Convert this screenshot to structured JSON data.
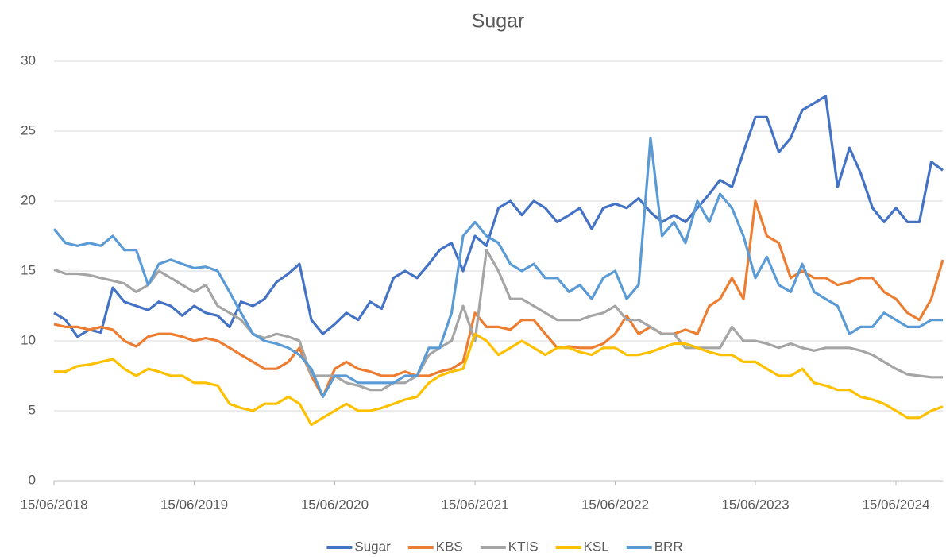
{
  "chart_data": {
    "type": "line",
    "title": "Sugar",
    "x": [
      "15/06/2018",
      "15/07/2018",
      "15/08/2018",
      "15/09/2018",
      "15/10/2018",
      "15/11/2018",
      "15/12/2018",
      "15/01/2019",
      "15/02/2019",
      "15/03/2019",
      "15/04/2019",
      "15/05/2019",
      "15/06/2019",
      "15/07/2019",
      "15/08/2019",
      "15/09/2019",
      "15/10/2019",
      "15/11/2019",
      "15/12/2019",
      "15/01/2020",
      "15/02/2020",
      "15/03/2020",
      "15/04/2020",
      "15/05/2020",
      "15/06/2020",
      "15/07/2020",
      "15/08/2020",
      "15/09/2020",
      "15/10/2020",
      "15/11/2020",
      "15/12/2020",
      "15/01/2021",
      "15/02/2021",
      "15/03/2021",
      "15/04/2021",
      "15/05/2021",
      "15/06/2021",
      "15/07/2021",
      "15/08/2021",
      "15/09/2021",
      "15/10/2021",
      "15/11/2021",
      "15/12/2021",
      "15/01/2022",
      "15/02/2022",
      "15/03/2022",
      "15/04/2022",
      "15/05/2022",
      "15/06/2022",
      "15/07/2022",
      "15/08/2022",
      "15/09/2022",
      "15/10/2022",
      "15/11/2022",
      "15/12/2022",
      "15/01/2023",
      "15/02/2023",
      "15/03/2023",
      "15/04/2023",
      "15/05/2023",
      "15/06/2023",
      "15/07/2023",
      "15/08/2023",
      "15/09/2023",
      "15/10/2023",
      "15/11/2023",
      "15/12/2023",
      "15/01/2024",
      "15/02/2024",
      "15/03/2024",
      "15/04/2024",
      "15/05/2024",
      "15/06/2024",
      "15/07/2024",
      "15/08/2024",
      "15/09/2024",
      "15/10/2024"
    ],
    "series": [
      {
        "name": "Sugar",
        "color": "#4472c4",
        "values": [
          12,
          11.5,
          10.3,
          10.8,
          10.6,
          13.8,
          12.8,
          12.5,
          12.2,
          12.8,
          12.5,
          11.8,
          12.5,
          12.0,
          11.8,
          11.0,
          12.8,
          12.5,
          13.0,
          14.2,
          14.8,
          15.5,
          11.5,
          10.5,
          11.2,
          12.0,
          11.5,
          12.8,
          12.3,
          14.5,
          15.0,
          14.5,
          15.5,
          16.5,
          17.0,
          15.0,
          17.5,
          16.8,
          19.5,
          20.0,
          19.0,
          20.0,
          19.5,
          18.5,
          19.0,
          19.5,
          18.0,
          19.5,
          19.8,
          19.5,
          20.2,
          19.2,
          18.5,
          19.0,
          18.5,
          19.5,
          20.5,
          21.5,
          21.0,
          23.5,
          26.0,
          26.0,
          23.5,
          24.5,
          26.5,
          27.0,
          27.5,
          21.0,
          23.8,
          22.0,
          19.5,
          18.5,
          19.5,
          18.5,
          18.5,
          22.8,
          22.2
        ]
      },
      {
        "name": "KBS",
        "color": "#ed7d31",
        "values": [
          11.2,
          11.0,
          11.0,
          10.8,
          11.0,
          10.8,
          10.0,
          9.6,
          10.3,
          10.5,
          10.5,
          10.3,
          10.0,
          10.2,
          10.0,
          9.5,
          9.0,
          8.5,
          8.0,
          8.0,
          8.5,
          9.5,
          7.5,
          6.0,
          8.0,
          8.5,
          8.0,
          7.8,
          7.5,
          7.5,
          7.8,
          7.5,
          7.5,
          7.8,
          8.0,
          8.5,
          12.0,
          11.0,
          11.0,
          10.8,
          11.5,
          11.5,
          10.5,
          9.5,
          9.6,
          9.5,
          9.5,
          9.8,
          10.5,
          11.8,
          10.5,
          11.0,
          10.5,
          10.5,
          10.8,
          10.5,
          12.5,
          13.0,
          14.5,
          13.0,
          20.0,
          17.5,
          17.0,
          14.5,
          15.0,
          14.5,
          14.5,
          14.0,
          14.2,
          14.5,
          14.5,
          13.5,
          13.0,
          12.0,
          11.5,
          13.0,
          15.8
        ]
      },
      {
        "name": "KTIS",
        "color": "#a5a5a5",
        "values": [
          15.1,
          14.8,
          14.8,
          14.7,
          14.5,
          14.3,
          14.1,
          13.5,
          14.0,
          15.0,
          14.5,
          14.0,
          13.5,
          14.0,
          12.5,
          12.0,
          11.5,
          10.5,
          10.2,
          10.5,
          10.3,
          10.0,
          7.5,
          7.5,
          7.5,
          7.0,
          6.8,
          6.5,
          6.5,
          7.0,
          7.0,
          7.5,
          9.0,
          9.5,
          10.0,
          12.5,
          10.0,
          16.5,
          15.0,
          13.0,
          13.0,
          12.5,
          12.0,
          11.5,
          11.5,
          11.5,
          11.8,
          12.0,
          12.5,
          11.5,
          11.5,
          11.0,
          10.5,
          10.5,
          9.5,
          9.5,
          9.5,
          9.5,
          11.0,
          10.0,
          10.0,
          9.8,
          9.5,
          9.8,
          9.5,
          9.3,
          9.5,
          9.5,
          9.5,
          9.3,
          9.0,
          8.5,
          8.0,
          7.6,
          7.5,
          7.4,
          7.4
        ]
      },
      {
        "name": "KSL",
        "color": "#ffc000",
        "values": [
          7.8,
          7.8,
          8.2,
          8.3,
          8.5,
          8.7,
          8.0,
          7.5,
          8.0,
          7.8,
          7.5,
          7.5,
          7.0,
          7.0,
          6.8,
          5.5,
          5.2,
          5.0,
          5.5,
          5.5,
          6.0,
          5.5,
          4.0,
          4.5,
          5.0,
          5.5,
          5.0,
          5.0,
          5.2,
          5.5,
          5.8,
          6.0,
          7.0,
          7.5,
          7.8,
          8.0,
          10.5,
          10.0,
          9.0,
          9.5,
          10.0,
          9.5,
          9.0,
          9.5,
          9.5,
          9.2,
          9.0,
          9.5,
          9.5,
          9.0,
          9.0,
          9.2,
          9.5,
          9.8,
          9.8,
          9.5,
          9.2,
          9.0,
          9.0,
          8.5,
          8.5,
          8.0,
          7.5,
          7.5,
          8.0,
          7.0,
          6.8,
          6.5,
          6.5,
          6.0,
          5.8,
          5.5,
          5.0,
          4.5,
          4.5,
          5.0,
          5.3
        ]
      },
      {
        "name": "BRR",
        "color": "#5b9bd5",
        "values": [
          18.0,
          17.0,
          16.8,
          17.0,
          16.8,
          17.5,
          16.5,
          16.5,
          14.0,
          15.5,
          15.8,
          15.5,
          15.2,
          15.3,
          15.0,
          13.5,
          12.0,
          10.5,
          10.0,
          9.8,
          9.5,
          9.0,
          8.0,
          6.0,
          7.5,
          7.5,
          7.0,
          7.0,
          7.0,
          7.0,
          7.5,
          7.5,
          9.5,
          9.5,
          12.0,
          17.5,
          18.5,
          17.5,
          17.0,
          15.5,
          15.0,
          15.5,
          14.5,
          14.5,
          13.5,
          14.0,
          13.0,
          14.5,
          15.0,
          13.0,
          14.0,
          24.5,
          17.5,
          18.5,
          17.0,
          20.0,
          18.5,
          20.5,
          19.5,
          17.5,
          14.5,
          16.0,
          14.0,
          13.5,
          15.5,
          13.5,
          13.0,
          12.5,
          10.5,
          11.0,
          11.0,
          12.0,
          11.5,
          11.0,
          11.0,
          11.5,
          11.5
        ]
      }
    ],
    "xlim": [
      "15/06/2018",
      "15/10/2024"
    ],
    "xticks": [
      "15/06/2018",
      "15/06/2019",
      "15/06/2020",
      "15/06/2021",
      "15/06/2022",
      "15/06/2023",
      "15/06/2024"
    ],
    "ylim": [
      0,
      30
    ],
    "yticks": [
      0,
      5,
      10,
      15,
      20,
      25,
      30
    ],
    "grid": true,
    "legend": "bottom"
  }
}
